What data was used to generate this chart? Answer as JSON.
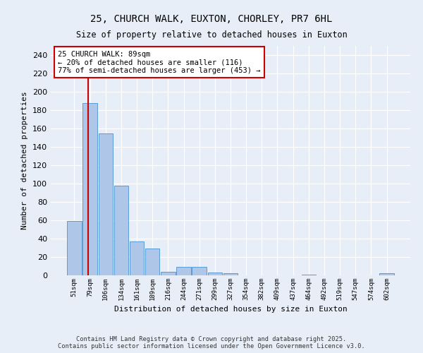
{
  "title": "25, CHURCH WALK, EUXTON, CHORLEY, PR7 6HL",
  "subtitle": "Size of property relative to detached houses in Euxton",
  "xlabel": "Distribution of detached houses by size in Euxton",
  "ylabel": "Number of detached properties",
  "bar_labels": [
    "51sqm",
    "79sqm",
    "106sqm",
    "134sqm",
    "161sqm",
    "189sqm",
    "216sqm",
    "244sqm",
    "271sqm",
    "299sqm",
    "327sqm",
    "354sqm",
    "382sqm",
    "409sqm",
    "437sqm",
    "464sqm",
    "492sqm",
    "519sqm",
    "547sqm",
    "574sqm",
    "602sqm"
  ],
  "bar_values": [
    59,
    188,
    155,
    98,
    37,
    29,
    4,
    9,
    9,
    3,
    2,
    0,
    0,
    0,
    0,
    1,
    0,
    0,
    0,
    0,
    2
  ],
  "bar_color": "#aec6e8",
  "bar_edge_color": "#5b9bd5",
  "background_color": "#e8eef8",
  "grid_color": "#ffffff",
  "annotation_text": "25 CHURCH WALK: 89sqm\n← 20% of detached houses are smaller (116)\n77% of semi-detached houses are larger (453) →",
  "annotation_box_color": "#ffffff",
  "annotation_box_edge_color": "#cc0000",
  "red_line_x": 0.88,
  "ylim": [
    0,
    250
  ],
  "yticks": [
    0,
    20,
    40,
    60,
    80,
    100,
    120,
    140,
    160,
    180,
    200,
    220,
    240
  ],
  "footer_line1": "Contains HM Land Registry data © Crown copyright and database right 2025.",
  "footer_line2": "Contains public sector information licensed under the Open Government Licence v3.0."
}
